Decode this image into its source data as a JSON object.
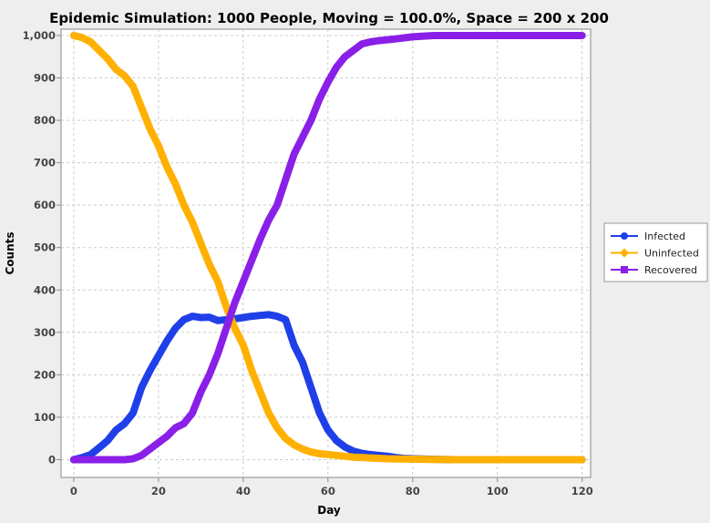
{
  "chart_data": {
    "type": "line",
    "title": "Epidemic Simulation: 1000 People, Moving = 100.0%, Space = 200 x 200",
    "xlabel": "Day",
    "ylabel": "Counts",
    "xlim": [
      -3,
      122
    ],
    "ylim": [
      -42,
      1015
    ],
    "x_ticks": [
      0,
      20,
      40,
      60,
      80,
      100,
      120
    ],
    "y_ticks": [
      0,
      100,
      200,
      300,
      400,
      500,
      600,
      700,
      800,
      900,
      1000
    ],
    "x_tick_labels": [
      "0",
      "20",
      "40",
      "60",
      "80",
      "100",
      "120"
    ],
    "y_tick_labels": [
      "0",
      "100",
      "200",
      "300",
      "400",
      "500",
      "600",
      "700",
      "800",
      "900",
      "1,000"
    ],
    "grid": true,
    "legend_position": "right",
    "series": [
      {
        "name": "Infected",
        "color": "#1f3fe8",
        "points": [
          [
            0,
            0
          ],
          [
            2,
            5
          ],
          [
            4,
            12
          ],
          [
            6,
            28
          ],
          [
            8,
            45
          ],
          [
            10,
            70
          ],
          [
            12,
            85
          ],
          [
            14,
            110
          ],
          [
            16,
            170
          ],
          [
            18,
            210
          ],
          [
            20,
            245
          ],
          [
            22,
            280
          ],
          [
            24,
            310
          ],
          [
            26,
            330
          ],
          [
            28,
            338
          ],
          [
            30,
            335
          ],
          [
            32,
            336
          ],
          [
            34,
            328
          ],
          [
            36,
            330
          ],
          [
            38,
            332
          ],
          [
            40,
            335
          ],
          [
            42,
            338
          ],
          [
            44,
            340
          ],
          [
            46,
            342
          ],
          [
            48,
            338
          ],
          [
            50,
            330
          ],
          [
            52,
            270
          ],
          [
            54,
            230
          ],
          [
            56,
            170
          ],
          [
            58,
            110
          ],
          [
            60,
            70
          ],
          [
            62,
            45
          ],
          [
            64,
            30
          ],
          [
            66,
            20
          ],
          [
            68,
            15
          ],
          [
            70,
            12
          ],
          [
            72,
            10
          ],
          [
            74,
            8
          ],
          [
            76,
            5
          ],
          [
            78,
            3
          ],
          [
            80,
            2
          ],
          [
            84,
            1
          ],
          [
            90,
            0
          ],
          [
            100,
            0
          ],
          [
            110,
            0
          ],
          [
            120,
            0
          ]
        ]
      },
      {
        "name": "Uninfected",
        "color": "#ffb000",
        "points": [
          [
            0,
            1000
          ],
          [
            2,
            995
          ],
          [
            4,
            985
          ],
          [
            6,
            965
          ],
          [
            8,
            945
          ],
          [
            10,
            920
          ],
          [
            12,
            905
          ],
          [
            14,
            880
          ],
          [
            16,
            830
          ],
          [
            18,
            780
          ],
          [
            20,
            740
          ],
          [
            22,
            690
          ],
          [
            24,
            650
          ],
          [
            26,
            600
          ],
          [
            28,
            560
          ],
          [
            30,
            510
          ],
          [
            32,
            460
          ],
          [
            34,
            420
          ],
          [
            36,
            360
          ],
          [
            38,
            310
          ],
          [
            40,
            270
          ],
          [
            42,
            210
          ],
          [
            44,
            160
          ],
          [
            46,
            110
          ],
          [
            48,
            75
          ],
          [
            50,
            50
          ],
          [
            52,
            35
          ],
          [
            54,
            25
          ],
          [
            56,
            18
          ],
          [
            58,
            14
          ],
          [
            60,
            12
          ],
          [
            62,
            10
          ],
          [
            64,
            8
          ],
          [
            66,
            6
          ],
          [
            68,
            5
          ],
          [
            70,
            4
          ],
          [
            74,
            2
          ],
          [
            80,
            1
          ],
          [
            90,
            0
          ],
          [
            100,
            0
          ],
          [
            110,
            0
          ],
          [
            120,
            0
          ]
        ]
      },
      {
        "name": "Recovered",
        "color": "#8a1fe8",
        "points": [
          [
            0,
            0
          ],
          [
            4,
            0
          ],
          [
            8,
            0
          ],
          [
            12,
            0
          ],
          [
            14,
            2
          ],
          [
            16,
            10
          ],
          [
            18,
            25
          ],
          [
            20,
            40
          ],
          [
            22,
            55
          ],
          [
            24,
            75
          ],
          [
            26,
            85
          ],
          [
            28,
            110
          ],
          [
            30,
            160
          ],
          [
            32,
            200
          ],
          [
            34,
            250
          ],
          [
            36,
            310
          ],
          [
            38,
            370
          ],
          [
            40,
            420
          ],
          [
            42,
            470
          ],
          [
            44,
            520
          ],
          [
            46,
            565
          ],
          [
            48,
            600
          ],
          [
            50,
            660
          ],
          [
            52,
            720
          ],
          [
            54,
            760
          ],
          [
            56,
            800
          ],
          [
            58,
            850
          ],
          [
            60,
            890
          ],
          [
            62,
            925
          ],
          [
            64,
            950
          ],
          [
            66,
            965
          ],
          [
            68,
            980
          ],
          [
            70,
            985
          ],
          [
            72,
            988
          ],
          [
            76,
            992
          ],
          [
            80,
            997
          ],
          [
            85,
            1000
          ],
          [
            90,
            1000
          ],
          [
            100,
            1000
          ],
          [
            110,
            1000
          ],
          [
            120,
            1000
          ]
        ]
      }
    ]
  }
}
